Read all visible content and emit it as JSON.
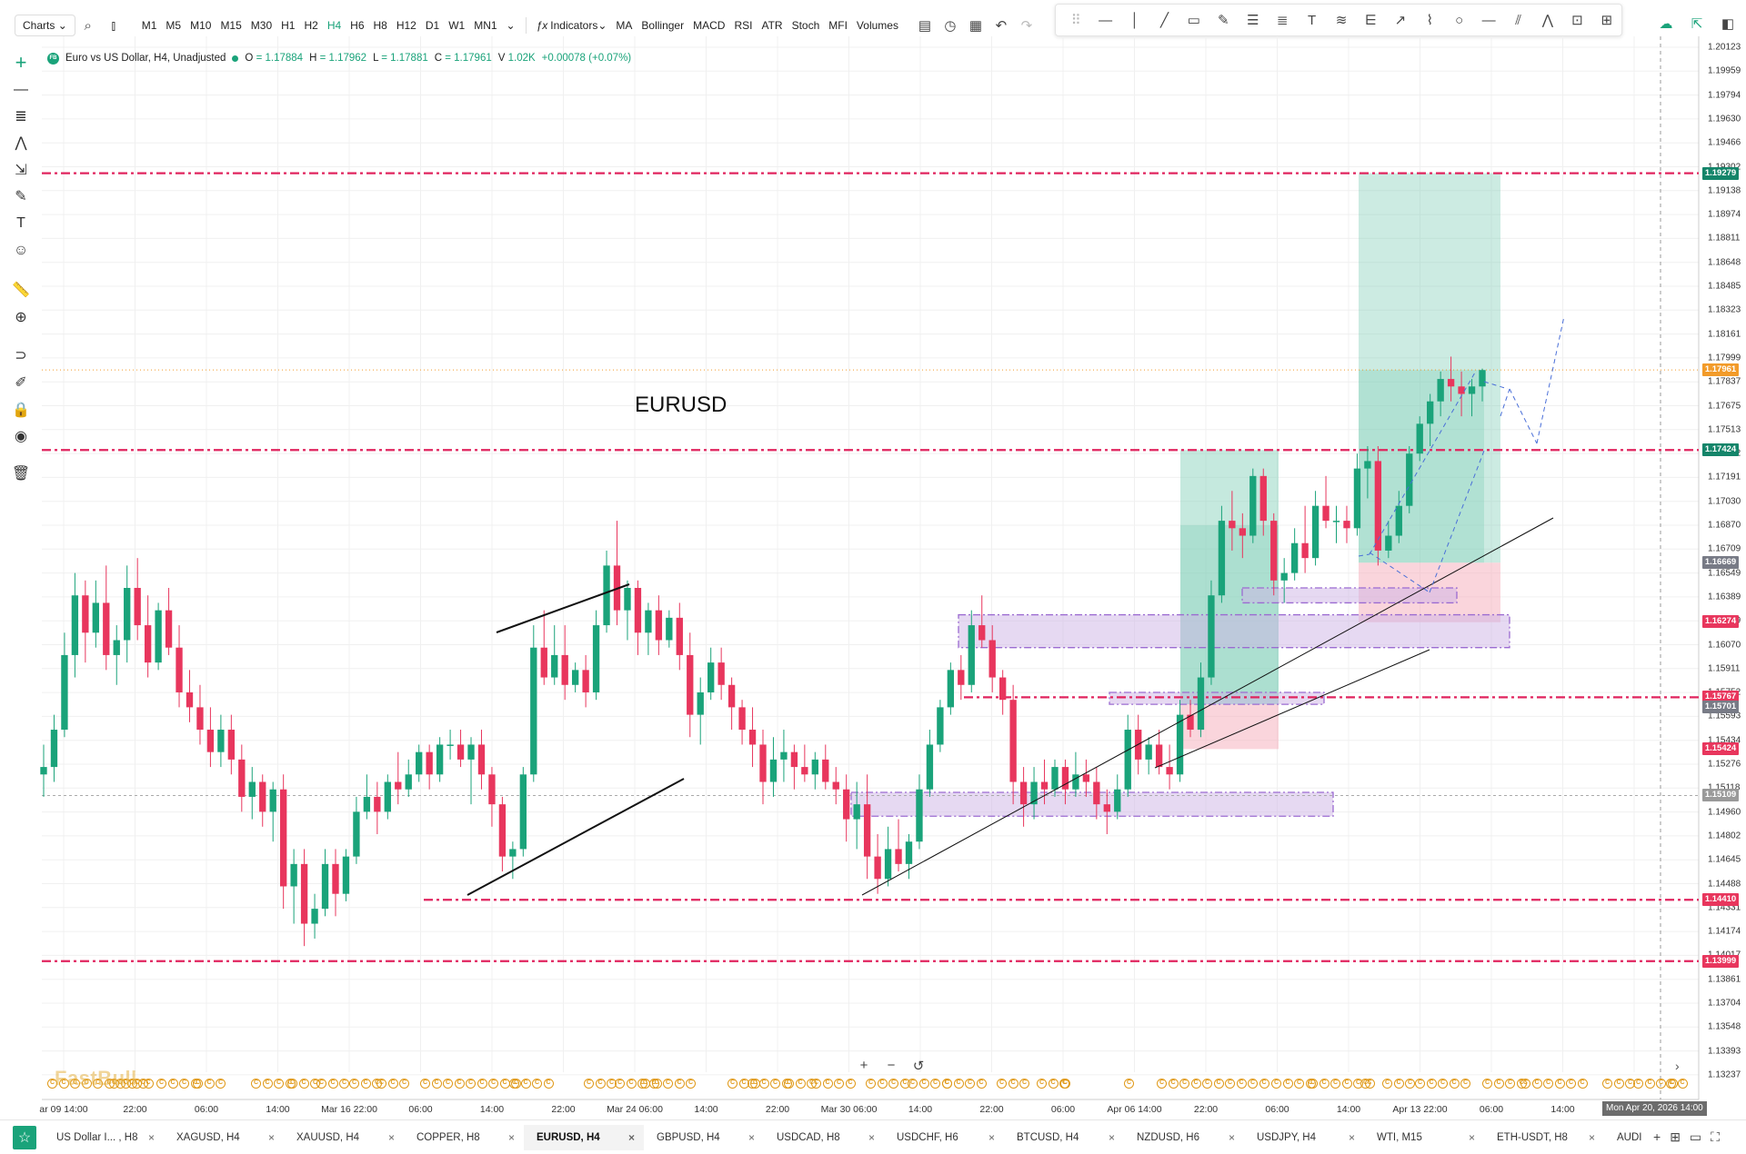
{
  "toolbar": {
    "charts_label": "Charts",
    "timeframes": [
      "M1",
      "M5",
      "M10",
      "M15",
      "M30",
      "H1",
      "H2",
      "H4",
      "H6",
      "H8",
      "H12",
      "D1",
      "W1",
      "MN1"
    ],
    "active_timeframe": "H4",
    "indicators_label": "Indicators",
    "quick_indicators": [
      "MA",
      "Bollinger",
      "MACD",
      "RSI",
      "ATR",
      "Stoch",
      "MFI",
      "Volumes"
    ]
  },
  "legend": {
    "symbol_title": "Euro vs US Dollar, H4, Unadjusted",
    "open_label": "O",
    "open": "= 1.17884",
    "high_label": "H",
    "high": "= 1.17962",
    "low_label": "L",
    "low": "= 1.17881",
    "close_label": "C",
    "close": "= 1.17961",
    "volume_label": "V",
    "volume": "1.02K",
    "change": "+0.00078 (+0.07%)",
    "accent": "#1aa37a"
  },
  "chart_label": "EURUSD",
  "price_axis": {
    "labels": [
      "1.20123",
      "1.19959",
      "1.19794",
      "1.19630",
      "1.19466",
      "1.19302",
      "1.19138",
      "1.18974",
      "1.18811",
      "1.18648",
      "1.18485",
      "1.18323",
      "1.18161",
      "1.17999",
      "1.17837",
      "1.17675",
      "1.17513",
      "1.17352",
      "1.17191",
      "1.17030",
      "1.16870",
      "1.16709",
      "1.16549",
      "1.16389",
      "1.16229",
      "1.16070",
      "1.15911",
      "1.15752",
      "1.15593",
      "1.15434",
      "1.15276",
      "1.15118",
      "1.14960",
      "1.14802",
      "1.14645",
      "1.14488",
      "1.14331",
      "1.14174",
      "1.14017",
      "1.13861",
      "1.13704",
      "1.13548",
      "1.13393",
      "1.13237"
    ],
    "tags": [
      {
        "value": "1.19279",
        "color": "#14856a"
      },
      {
        "value": "1.17961",
        "color": "#f29b2a"
      },
      {
        "value": "1.17424",
        "color": "#14856a"
      },
      {
        "value": "1.16669",
        "color": "#787b86"
      },
      {
        "value": "1.16274",
        "color": "#e8365d"
      },
      {
        "value": "1.15767",
        "color": "#e8365d"
      },
      {
        "value": "1.15701",
        "color": "#787b86"
      },
      {
        "value": "1.15424",
        "color": "#e8365d"
      },
      {
        "value": "1.15109",
        "color": "#9a9a9a"
      },
      {
        "value": "1.14410",
        "color": "#e8365d"
      },
      {
        "value": "1.13999",
        "color": "#e8365d"
      }
    ]
  },
  "time_axis": {
    "labels": [
      "ar 09 14:00",
      "22:00",
      "06:00",
      "14:00",
      "Mar 16 22:00",
      "06:00",
      "14:00",
      "22:00",
      "Mar 24 06:00",
      "14:00",
      "22:00",
      "Mar 30 06:00",
      "14:00",
      "22:00",
      "06:00",
      "Apr 06 14:00",
      "22:00",
      "06:00",
      "14:00",
      "Apr 13 22:00",
      "06:00",
      "14:00"
    ],
    "crosshair": "Mon Apr 20, 2026 14:00"
  },
  "watermark": "FastBull",
  "event_glyph": "C",
  "tabs": [
    {
      "label": "US Dollar I... , H8",
      "active": false
    },
    {
      "label": "XAGUSD, H4",
      "active": false
    },
    {
      "label": "XAUUSD, H4",
      "active": false
    },
    {
      "label": "COPPER, H8",
      "active": false
    },
    {
      "label": "EURUSD, H4",
      "active": true
    },
    {
      "label": "GBPUSD, H4",
      "active": false
    },
    {
      "label": "USDCAD, H8",
      "active": false
    },
    {
      "label": "USDCHF, H6",
      "active": false
    },
    {
      "label": "BTCUSD, H4",
      "active": false
    },
    {
      "label": "NZDUSD, H6",
      "active": false
    },
    {
      "label": "USDJPY, H4",
      "active": false
    },
    {
      "label": "WTI, M15",
      "active": false
    },
    {
      "label": "ETH-USDT, H8",
      "active": false
    },
    {
      "label": "AUDI",
      "active": false
    }
  ],
  "tab_close_glyph": "×",
  "chart_data": {
    "type": "candlestick",
    "symbol": "EURUSD",
    "timeframe": "H4",
    "ylim": [
      1.13237,
      1.20123
    ],
    "candles": [
      [
        1.1525,
        1.1545,
        1.151,
        1.153
      ],
      [
        1.153,
        1.1565,
        1.152,
        1.1555
      ],
      [
        1.1555,
        1.162,
        1.155,
        1.1605
      ],
      [
        1.1605,
        1.166,
        1.159,
        1.1645
      ],
      [
        1.1645,
        1.1655,
        1.16,
        1.162
      ],
      [
        1.162,
        1.1655,
        1.161,
        1.164
      ],
      [
        1.164,
        1.1665,
        1.1595,
        1.1605
      ],
      [
        1.1605,
        1.1625,
        1.1585,
        1.1615
      ],
      [
        1.1615,
        1.1665,
        1.16,
        1.165
      ],
      [
        1.165,
        1.167,
        1.1615,
        1.1625
      ],
      [
        1.1625,
        1.1645,
        1.159,
        1.16
      ],
      [
        1.16,
        1.164,
        1.1595,
        1.1635
      ],
      [
        1.1635,
        1.165,
        1.1605,
        1.161
      ],
      [
        1.161,
        1.1625,
        1.157,
        1.158
      ],
      [
        1.158,
        1.1595,
        1.156,
        1.157
      ],
      [
        1.157,
        1.1585,
        1.1545,
        1.1555
      ],
      [
        1.1555,
        1.157,
        1.153,
        1.154
      ],
      [
        1.154,
        1.1565,
        1.153,
        1.1555
      ],
      [
        1.1555,
        1.1565,
        1.1525,
        1.1535
      ],
      [
        1.1535,
        1.1545,
        1.15,
        1.151
      ],
      [
        1.151,
        1.153,
        1.1495,
        1.152
      ],
      [
        1.152,
        1.1525,
        1.149,
        1.15
      ],
      [
        1.15,
        1.152,
        1.148,
        1.1515
      ],
      [
        1.1515,
        1.1525,
        1.1435,
        1.145
      ],
      [
        1.145,
        1.1475,
        1.1425,
        1.1465
      ],
      [
        1.1465,
        1.1475,
        1.141,
        1.1425
      ],
      [
        1.1425,
        1.1445,
        1.1415,
        1.1435
      ],
      [
        1.1435,
        1.1475,
        1.143,
        1.1465
      ],
      [
        1.1465,
        1.1475,
        1.143,
        1.1445
      ],
      [
        1.1445,
        1.1475,
        1.144,
        1.147
      ],
      [
        1.147,
        1.151,
        1.1465,
        1.15
      ],
      [
        1.15,
        1.1525,
        1.1495,
        1.151
      ],
      [
        1.151,
        1.152,
        1.1485,
        1.15
      ],
      [
        1.15,
        1.1525,
        1.1495,
        1.152
      ],
      [
        1.152,
        1.154,
        1.1505,
        1.1515
      ],
      [
        1.1515,
        1.1535,
        1.151,
        1.1525
      ],
      [
        1.1525,
        1.1545,
        1.152,
        1.154
      ],
      [
        1.154,
        1.1545,
        1.1515,
        1.1525
      ],
      [
        1.1525,
        1.155,
        1.152,
        1.1545
      ],
      [
        1.1545,
        1.1555,
        1.1535,
        1.1545
      ],
      [
        1.1545,
        1.1555,
        1.153,
        1.1535
      ],
      [
        1.1535,
        1.155,
        1.1505,
        1.1545
      ],
      [
        1.1545,
        1.1555,
        1.1515,
        1.1525
      ],
      [
        1.1525,
        1.153,
        1.149,
        1.1505
      ],
      [
        1.1505,
        1.151,
        1.146,
        1.147
      ],
      [
        1.147,
        1.148,
        1.1455,
        1.1475
      ],
      [
        1.1475,
        1.153,
        1.147,
        1.1525
      ],
      [
        1.1525,
        1.1625,
        1.152,
        1.161
      ],
      [
        1.161,
        1.1635,
        1.1585,
        1.159
      ],
      [
        1.159,
        1.1625,
        1.1585,
        1.1605
      ],
      [
        1.1605,
        1.1625,
        1.1575,
        1.1585
      ],
      [
        1.1585,
        1.16,
        1.158,
        1.1595
      ],
      [
        1.1595,
        1.1605,
        1.157,
        1.158
      ],
      [
        1.158,
        1.1635,
        1.1575,
        1.1625
      ],
      [
        1.1625,
        1.1675,
        1.162,
        1.1665
      ],
      [
        1.1665,
        1.1695,
        1.1625,
        1.1635
      ],
      [
        1.1635,
        1.1655,
        1.1615,
        1.165
      ],
      [
        1.165,
        1.1655,
        1.1605,
        1.162
      ],
      [
        1.162,
        1.164,
        1.1605,
        1.1635
      ],
      [
        1.1635,
        1.1645,
        1.1605,
        1.1615
      ],
      [
        1.1615,
        1.1635,
        1.161,
        1.163
      ],
      [
        1.163,
        1.164,
        1.1595,
        1.1605
      ],
      [
        1.1605,
        1.162,
        1.155,
        1.1565
      ],
      [
        1.1565,
        1.159,
        1.1545,
        1.158
      ],
      [
        1.158,
        1.161,
        1.1575,
        1.16
      ],
      [
        1.16,
        1.161,
        1.1575,
        1.1585
      ],
      [
        1.1585,
        1.159,
        1.1555,
        1.157
      ],
      [
        1.157,
        1.1575,
        1.1545,
        1.1555
      ],
      [
        1.1555,
        1.157,
        1.153,
        1.1545
      ],
      [
        1.1545,
        1.1555,
        1.1505,
        1.152
      ],
      [
        1.152,
        1.155,
        1.151,
        1.1535
      ],
      [
        1.1535,
        1.1555,
        1.152,
        1.154
      ],
      [
        1.154,
        1.1545,
        1.1515,
        1.153
      ],
      [
        1.153,
        1.1545,
        1.152,
        1.1525
      ],
      [
        1.1525,
        1.154,
        1.1515,
        1.1535
      ],
      [
        1.1535,
        1.1545,
        1.1515,
        1.152
      ],
      [
        1.152,
        1.153,
        1.1505,
        1.1515
      ],
      [
        1.1515,
        1.1525,
        1.148,
        1.1495
      ],
      [
        1.1495,
        1.152,
        1.1475,
        1.1505
      ],
      [
        1.1505,
        1.1525,
        1.1455,
        1.147
      ],
      [
        1.147,
        1.1485,
        1.1445,
        1.1455
      ],
      [
        1.1455,
        1.149,
        1.145,
        1.1475
      ],
      [
        1.1475,
        1.1495,
        1.146,
        1.1465
      ],
      [
        1.1465,
        1.1485,
        1.1455,
        1.148
      ],
      [
        1.148,
        1.1525,
        1.1475,
        1.1515
      ],
      [
        1.1515,
        1.1555,
        1.151,
        1.1545
      ],
      [
        1.1545,
        1.1575,
        1.154,
        1.157
      ],
      [
        1.157,
        1.16,
        1.1565,
        1.1595
      ],
      [
        1.1595,
        1.1605,
        1.1575,
        1.1585
      ],
      [
        1.1585,
        1.1635,
        1.158,
        1.1625
      ],
      [
        1.1625,
        1.1645,
        1.161,
        1.1615
      ],
      [
        1.1615,
        1.1625,
        1.158,
        1.159
      ],
      [
        1.159,
        1.1595,
        1.1565,
        1.1575
      ],
      [
        1.1575,
        1.1585,
        1.1505,
        1.152
      ],
      [
        1.152,
        1.153,
        1.149,
        1.1505
      ],
      [
        1.1505,
        1.153,
        1.1495,
        1.152
      ],
      [
        1.152,
        1.1535,
        1.1505,
        1.1515
      ],
      [
        1.1515,
        1.1535,
        1.151,
        1.153
      ],
      [
        1.153,
        1.1535,
        1.1505,
        1.1515
      ],
      [
        1.1515,
        1.154,
        1.151,
        1.1525
      ],
      [
        1.1525,
        1.1535,
        1.151,
        1.152
      ],
      [
        1.152,
        1.153,
        1.1495,
        1.1505
      ],
      [
        1.1505,
        1.1515,
        1.1485,
        1.15
      ],
      [
        1.15,
        1.1525,
        1.1495,
        1.1515
      ],
      [
        1.1515,
        1.1565,
        1.151,
        1.1555
      ],
      [
        1.1555,
        1.1565,
        1.1525,
        1.1535
      ],
      [
        1.1535,
        1.155,
        1.1525,
        1.1545
      ],
      [
        1.1545,
        1.1555,
        1.1525,
        1.153
      ],
      [
        1.153,
        1.1545,
        1.1515,
        1.1525
      ],
      [
        1.1525,
        1.1575,
        1.152,
        1.1565
      ],
      [
        1.1565,
        1.1575,
        1.155,
        1.1555
      ],
      [
        1.1555,
        1.16,
        1.155,
        1.159
      ],
      [
        1.159,
        1.1655,
        1.1585,
        1.1645
      ],
      [
        1.1645,
        1.1705,
        1.164,
        1.1695
      ],
      [
        1.1695,
        1.1715,
        1.1675,
        1.169
      ],
      [
        1.169,
        1.17,
        1.167,
        1.1685
      ],
      [
        1.1685,
        1.173,
        1.168,
        1.1725
      ],
      [
        1.1725,
        1.173,
        1.1685,
        1.1695
      ],
      [
        1.1695,
        1.17,
        1.1645,
        1.1655
      ],
      [
        1.1655,
        1.167,
        1.164,
        1.166
      ],
      [
        1.166,
        1.169,
        1.1655,
        1.168
      ],
      [
        1.168,
        1.1705,
        1.166,
        1.167
      ],
      [
        1.167,
        1.1715,
        1.1665,
        1.1705
      ],
      [
        1.1705,
        1.1725,
        1.169,
        1.1695
      ],
      [
        1.1695,
        1.1705,
        1.168,
        1.1695
      ],
      [
        1.1695,
        1.1705,
        1.168,
        1.169
      ],
      [
        1.169,
        1.174,
        1.1685,
        1.173
      ],
      [
        1.173,
        1.1745,
        1.171,
        1.1735
      ],
      [
        1.1735,
        1.1745,
        1.1665,
        1.1675
      ],
      [
        1.1675,
        1.1695,
        1.167,
        1.1685
      ],
      [
        1.1685,
        1.1715,
        1.168,
        1.1705
      ],
      [
        1.1705,
        1.1745,
        1.17,
        1.174
      ],
      [
        1.174,
        1.1765,
        1.1735,
        1.176
      ],
      [
        1.176,
        1.178,
        1.1745,
        1.1775
      ],
      [
        1.1775,
        1.1795,
        1.1765,
        1.179
      ],
      [
        1.179,
        1.1805,
        1.1775,
        1.1785
      ],
      [
        1.1785,
        1.1795,
        1.1765,
        1.178
      ],
      [
        1.178,
        1.179,
        1.1765,
        1.1785
      ],
      [
        1.1785,
        1.1797,
        1.1775,
        1.1796
      ]
    ]
  },
  "colors": {
    "bull": "#1aa37a",
    "bear": "#e8365d",
    "level_line": "#e0245e",
    "grid": "#f0f0f0",
    "zone_purple": "#cdb4e6",
    "tp_zone": "#7fceb6",
    "sl_zone": "#f6b3c0"
  }
}
